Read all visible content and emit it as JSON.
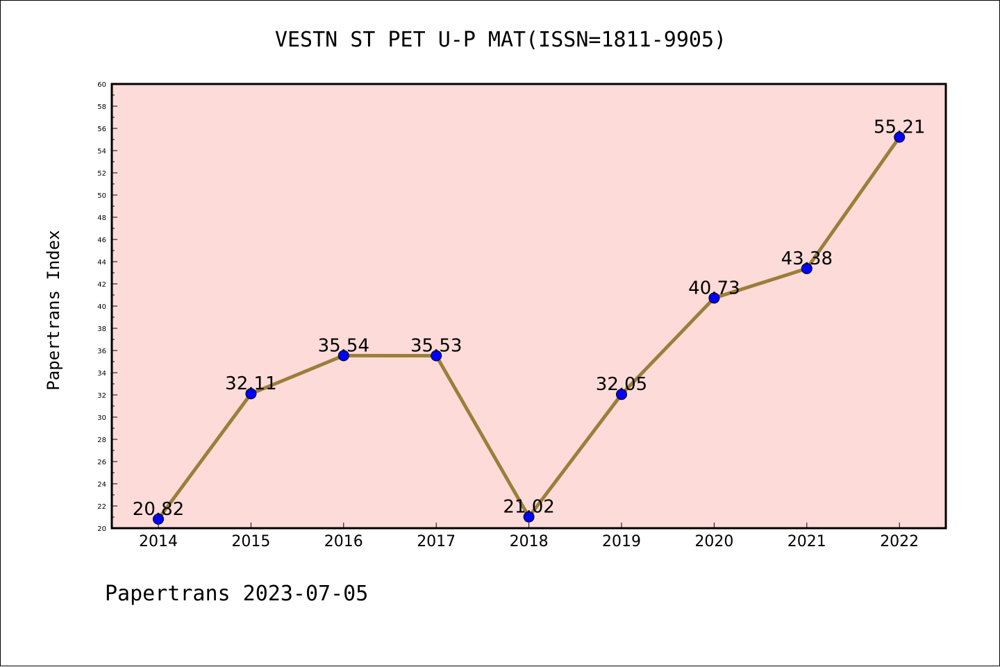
{
  "chart_data": {
    "type": "line",
    "title": "VESTN ST PET U-P MAT(ISSN=1811-9905)",
    "ylabel": "Papertrans Index",
    "xlabel": "",
    "footer": "Papertrans 2023-07-05",
    "categories": [
      "2014",
      "2015",
      "2016",
      "2017",
      "2018",
      "2019",
      "2020",
      "2021",
      "2022"
    ],
    "series": [
      {
        "values": [
          20.82,
          32.11,
          35.54,
          35.53,
          21.02,
          32.05,
          40.73,
          43.38,
          55.21
        ],
        "labels": [
          "20.82",
          "32.11",
          "35.54",
          "35.53",
          "21.02",
          "32.05",
          "40.73",
          "43.38",
          "55.21"
        ]
      }
    ],
    "ylim": [
      20,
      60
    ],
    "ytick_step": 2,
    "grid": false,
    "legend": "none",
    "colors": {
      "plot_background": "#fddbd9",
      "line": "#9b7e3a",
      "marker": "#0000ff",
      "axes": "#000000"
    }
  }
}
